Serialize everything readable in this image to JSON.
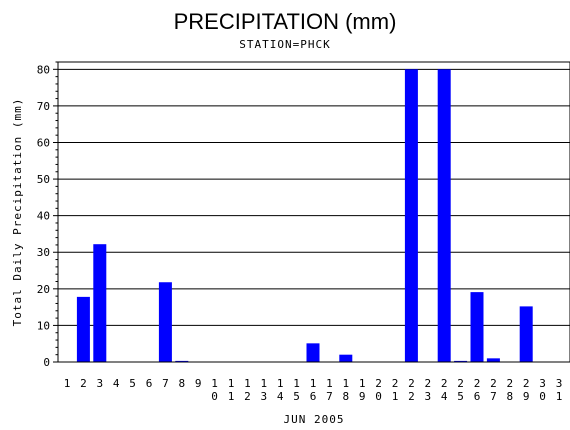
{
  "chart_data": {
    "type": "bar",
    "title": "PRECIPITATION (mm)",
    "subtitle": "STATION=PHCK",
    "xlabel": "JUN 2005",
    "ylabel": "Total Daily Precipitation (mm)",
    "ylim": [
      0,
      82
    ],
    "yticks": [
      0,
      10,
      20,
      30,
      40,
      50,
      60,
      70,
      80
    ],
    "grid": true,
    "categories": [
      "1",
      "2",
      "3",
      "4",
      "5",
      "6",
      "7",
      "8",
      "9",
      "10",
      "11",
      "12",
      "13",
      "14",
      "15",
      "16",
      "17",
      "18",
      "19",
      "20",
      "21",
      "22",
      "23",
      "24",
      "25",
      "26",
      "27",
      "28",
      "29",
      "30",
      "31"
    ],
    "values": [
      0,
      17.8,
      32.2,
      0,
      0,
      0,
      21.8,
      0.3,
      0,
      0,
      0,
      0,
      0,
      0,
      0,
      5.1,
      0,
      2.0,
      0,
      0,
      0,
      80,
      0,
      80,
      0.3,
      19.1,
      1.0,
      0,
      15.2,
      0,
      0
    ],
    "bar_color": "#0000ff"
  }
}
